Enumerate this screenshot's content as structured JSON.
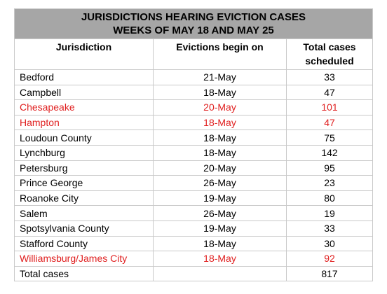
{
  "title": {
    "line1": "JURISDICTIONS HEARING EVICTION CASES",
    "line2": "WEEKS OF MAY 18 AND MAY 25"
  },
  "headers": {
    "jurisdiction": "Jurisdiction",
    "evictions_begin": "Evictions begin on",
    "total_line1": "Total cases",
    "total_line2": "scheduled"
  },
  "highlight_color": "#e02020",
  "rows": [
    {
      "name": "Bedford",
      "date": "21-May",
      "cases": "33",
      "highlight": false
    },
    {
      "name": "Campbell",
      "date": "18-May",
      "cases": "47",
      "highlight": false
    },
    {
      "name": "Chesapeake",
      "date": "20-May",
      "cases": "101",
      "highlight": true
    },
    {
      "name": "Hampton",
      "date": "18-May",
      "cases": "47",
      "highlight": true
    },
    {
      "name": "Loudoun County",
      "date": "18-May",
      "cases": "75",
      "highlight": false
    },
    {
      "name": "Lynchburg",
      "date": "18-May",
      "cases": "142",
      "highlight": false
    },
    {
      "name": "Petersburg",
      "date": "20-May",
      "cases": "95",
      "highlight": false
    },
    {
      "name": "Prince George",
      "date": "26-May",
      "cases": "23",
      "highlight": false
    },
    {
      "name": "Roanoke City",
      "date": "19-May",
      "cases": "80",
      "highlight": false
    },
    {
      "name": "Salem",
      "date": "26-May",
      "cases": "19",
      "highlight": false
    },
    {
      "name": "Spotsylvania County",
      "date": "19-May",
      "cases": "33",
      "highlight": false
    },
    {
      "name": "Stafford County",
      "date": "18-May",
      "cases": "30",
      "highlight": false
    },
    {
      "name": "Williamsburg/James City",
      "date": "18-May",
      "cases": "92",
      "highlight": true
    }
  ],
  "total": {
    "label": "Total cases",
    "date": "",
    "cases": "817"
  }
}
